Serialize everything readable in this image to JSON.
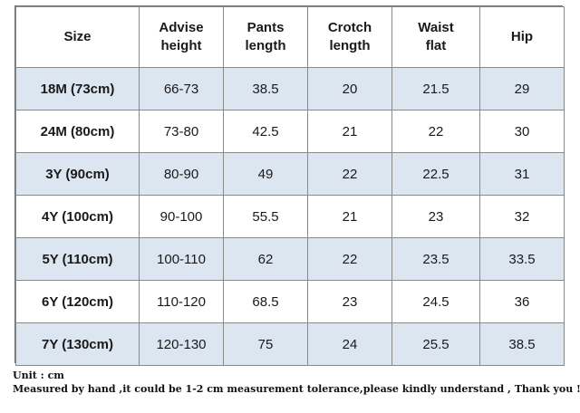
{
  "table": {
    "headers": [
      [
        "Size"
      ],
      [
        "Advise",
        "height"
      ],
      [
        "Pants",
        "length"
      ],
      [
        "Crotch",
        "length"
      ],
      [
        "Waist",
        "flat"
      ],
      [
        "Hip"
      ]
    ],
    "rows": [
      [
        "18M (73cm)",
        "66-73",
        "38.5",
        "20",
        "21.5",
        "29"
      ],
      [
        "24M (80cm)",
        "73-80",
        "42.5",
        "21",
        "22",
        "30"
      ],
      [
        "3Y (90cm)",
        "80-90",
        "49",
        "22",
        "22.5",
        "31"
      ],
      [
        "4Y (100cm)",
        "90-100",
        "55.5",
        "21",
        "23",
        "32"
      ],
      [
        "5Y (110cm)",
        "100-110",
        "62",
        "22",
        "23.5",
        "33.5"
      ],
      [
        "6Y (120cm)",
        "110-120",
        "68.5",
        "23",
        "24.5",
        "36"
      ],
      [
        "7Y (130cm)",
        "120-130",
        "75",
        "24",
        "25.5",
        "38.5"
      ]
    ]
  },
  "notes": {
    "unit": "Unit : cm",
    "tolerance": "Measured by hand ,it could be 1-2 cm measurement tolerance,please kindly understand , Thank you !"
  },
  "colors": {
    "row_shade": "#dce6f1",
    "grid_line": "#8a8a8a"
  }
}
